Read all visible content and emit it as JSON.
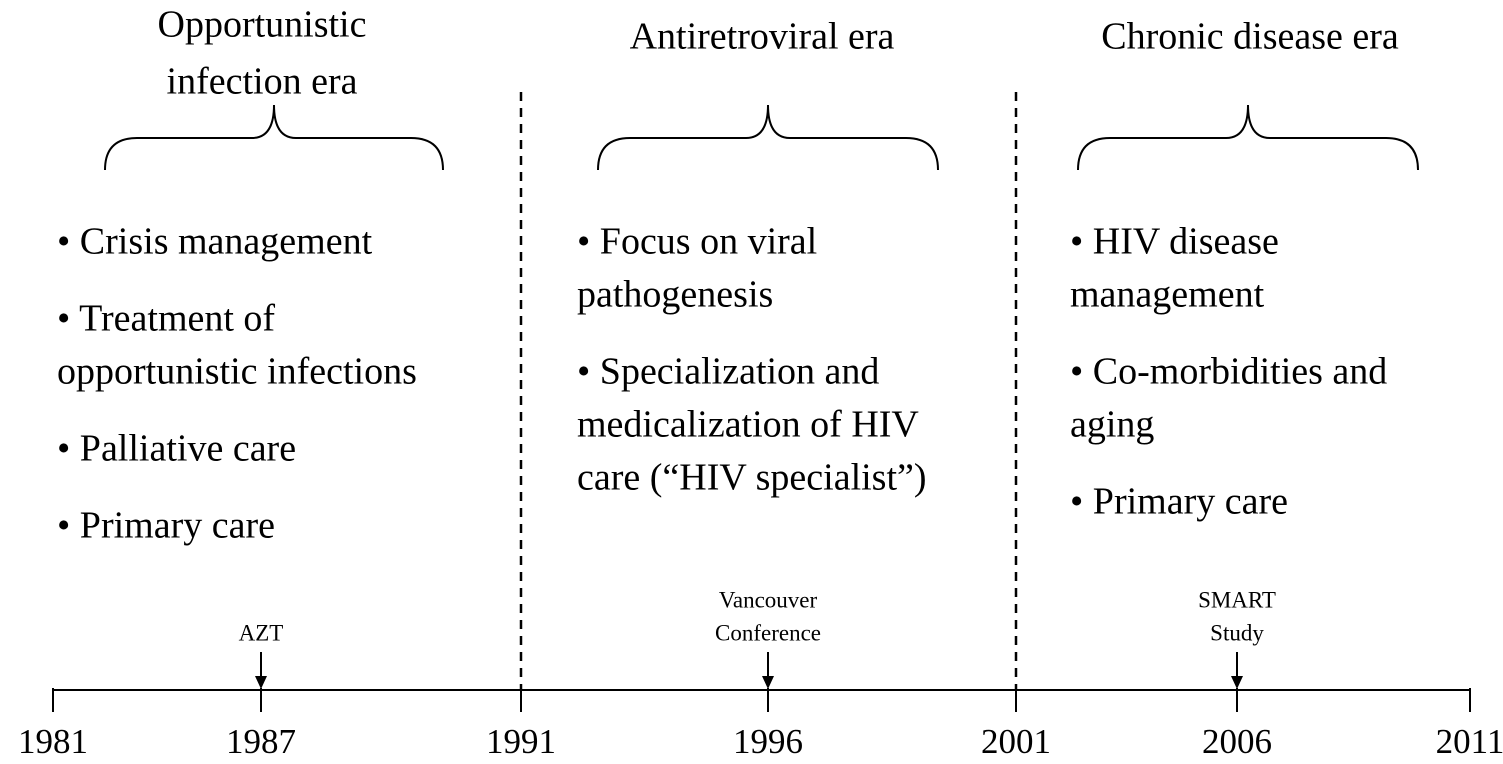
{
  "eras": [
    {
      "title": [
        "Opportunistic",
        "infection era"
      ],
      "items": [
        [
          "• Crisis management"
        ],
        [
          "• Treatment of",
          "opportunistic infections"
        ],
        [
          "• Palliative care"
        ],
        [
          "• Primary care"
        ]
      ]
    },
    {
      "title": [
        "Antiretroviral era"
      ],
      "items": [
        [
          "• Focus on viral",
          "pathogenesis"
        ],
        [
          "• Specialization and",
          "medicalization of HIV",
          "care (“HIV specialist”)"
        ]
      ]
    },
    {
      "title": [
        "Chronic disease era"
      ],
      "items": [
        [
          "• HIV disease",
          "management"
        ],
        [
          "• Co-morbidities and",
          "aging"
        ],
        [
          "• Primary care"
        ]
      ]
    }
  ],
  "timeline": {
    "years": [
      "1981",
      "1987",
      "1991",
      "1996",
      "2001",
      "2006",
      "2011"
    ],
    "events": [
      {
        "label": [
          "AZT"
        ]
      },
      {
        "label": [
          "Vancouver",
          "Conference"
        ]
      },
      {
        "label": [
          "SMART",
          "Study"
        ]
      }
    ]
  }
}
